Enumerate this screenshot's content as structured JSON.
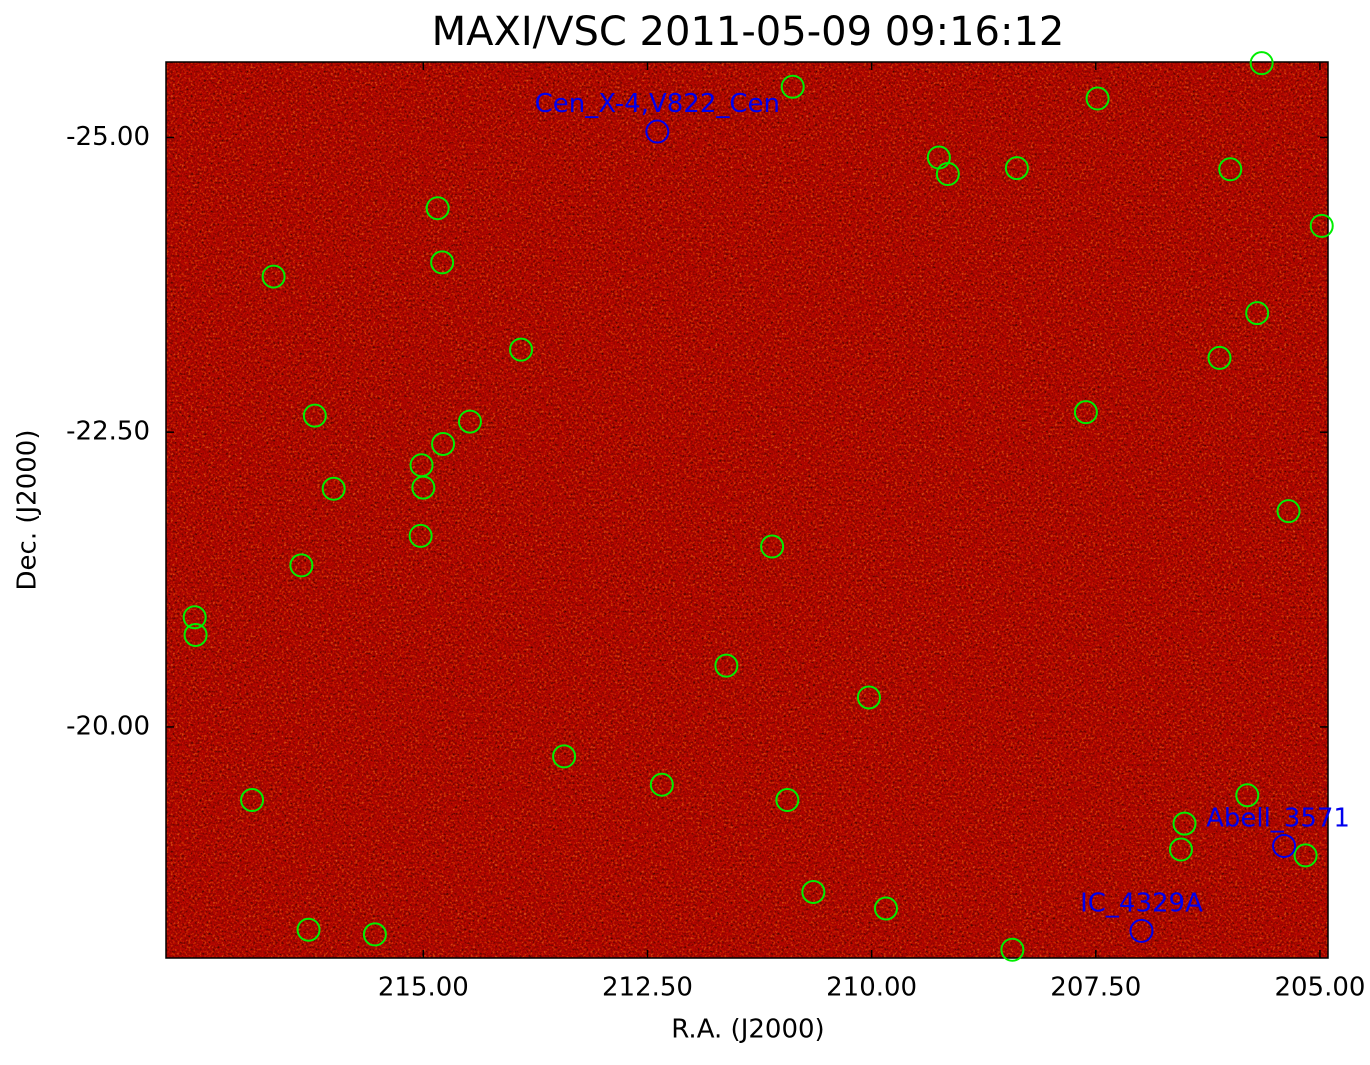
{
  "chart_data": {
    "type": "scatter",
    "title": "MAXI/VSC 2011-05-09 09:16:12",
    "xlabel": "R.A. (J2000)",
    "ylabel": "Dec. (J2000)",
    "xlim": [
      217.87,
      204.91
    ],
    "ylim": [
      -18.04,
      -25.64
    ],
    "xticks": [
      {
        "value": 215,
        "label": "215.00"
      },
      {
        "value": 212.5,
        "label": "212.50"
      },
      {
        "value": 210,
        "label": "210.00"
      },
      {
        "value": 207.5,
        "label": "207.50"
      },
      {
        "value": 205,
        "label": "205.00"
      }
    ],
    "yticks": [
      {
        "value": -25,
        "label": "-25.00"
      },
      {
        "value": -22.5,
        "label": "-22.50"
      },
      {
        "value": -20,
        "label": "-20.00"
      }
    ],
    "color": "#00ee00",
    "x": [
      210.88,
      207.48,
      205.65,
      209.25,
      209.15,
      208.38,
      206.0,
      204.98,
      214.84,
      214.79,
      216.67,
      205.7,
      213.91,
      206.12,
      216.21,
      207.61,
      214.48,
      214.78,
      215.02,
      215.0,
      216.0,
      205.35,
      215.03,
      211.11,
      216.36,
      217.55,
      217.54,
      211.62,
      210.03,
      213.43,
      212.34,
      216.91,
      210.94,
      205.81,
      206.51,
      206.55,
      205.16,
      210.65,
      209.84,
      216.28,
      215.54,
      208.43
    ],
    "values": [
      -25.43,
      -25.33,
      -25.63,
      -24.83,
      -24.69,
      -24.74,
      -24.73,
      -24.25,
      -24.4,
      -23.94,
      -23.82,
      -23.51,
      -23.2,
      -23.13,
      -22.64,
      -22.67,
      -22.59,
      -22.4,
      -22.22,
      -22.03,
      -22.02,
      -21.83,
      -21.62,
      -21.53,
      -21.37,
      -20.93,
      -20.78,
      -20.52,
      -20.25,
      -19.75,
      -19.51,
      -19.38,
      -19.38,
      -19.42,
      -19.18,
      -18.96,
      -18.91,
      -18.6,
      -18.46,
      -18.28,
      -18.24,
      -18.11
    ],
    "annotation_color": "#0000ee",
    "annotations": [
      {
        "text": "Cen_X-4,V822_Cen",
        "x": 212.39,
        "y": -25.05
      },
      {
        "text": "Abell_3571",
        "x": 205.4,
        "y": -18.99
      },
      {
        "text": "IC_4329A",
        "x": 206.99,
        "y": -18.27
      }
    ]
  }
}
